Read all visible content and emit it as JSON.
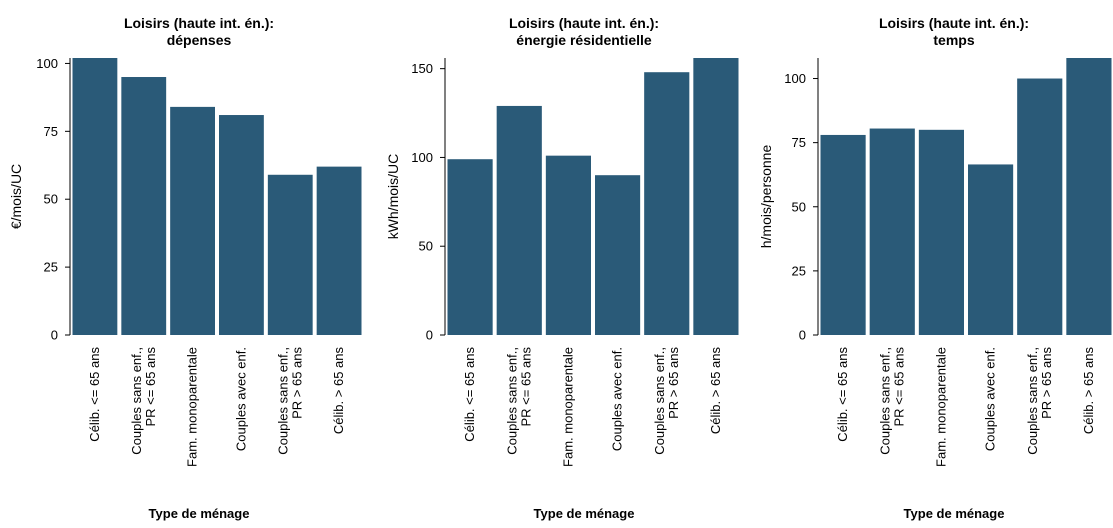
{
  "chart_data": [
    {
      "type": "bar",
      "title": [
        "Loisirs (haute int. én.):",
        "dépenses"
      ],
      "xlabel": "Type de ménage",
      "ylabel": "€/mois/UC",
      "categories": [
        [
          "Célib. <= 65 ans"
        ],
        [
          "Couples sans enf.,",
          "PR <= 65 ans"
        ],
        [
          "Fam. monoparentale"
        ],
        [
          "Couples avec enf."
        ],
        [
          "Couples sans enf.,",
          "PR > 65 ans"
        ],
        [
          "Célib. > 65 ans"
        ]
      ],
      "values": [
        102,
        95,
        84,
        81,
        59,
        62
      ],
      "ylim": [
        0,
        102
      ],
      "yticks": [
        0,
        25,
        50,
        75,
        100
      ],
      "color": "#2a5a78"
    },
    {
      "type": "bar",
      "title": [
        "Loisirs (haute int. én.):",
        "énergie résidentielle"
      ],
      "xlabel": "Type de ménage",
      "ylabel": "kWh/mois/UC",
      "categories": [
        [
          "Célib. <= 65 ans"
        ],
        [
          "Couples sans enf.,",
          "PR <= 65 ans"
        ],
        [
          "Fam. monoparentale"
        ],
        [
          "Couples avec enf."
        ],
        [
          "Couples sans enf.,",
          "PR > 65 ans"
        ],
        [
          "Célib. > 65 ans"
        ]
      ],
      "values": [
        99,
        129,
        101,
        90,
        148,
        156
      ],
      "ylim": [
        0,
        156
      ],
      "yticks": [
        0,
        50,
        100,
        150
      ],
      "color": "#2a5a78"
    },
    {
      "type": "bar",
      "title": [
        "Loisirs (haute int. én.):",
        "temps"
      ],
      "xlabel": "Type de ménage",
      "ylabel": "h/mois/personne",
      "categories": [
        [
          "Célib. <= 65 ans"
        ],
        [
          "Couples sans enf.,",
          "PR <= 65 ans"
        ],
        [
          "Fam. monoparentale"
        ],
        [
          "Couples avec enf."
        ],
        [
          "Couples sans enf.,",
          "PR > 65 ans"
        ],
        [
          "Célib. > 65 ans"
        ]
      ],
      "values": [
        78,
        80.5,
        80,
        66.5,
        100,
        108
      ],
      "ylim": [
        0,
        108
      ],
      "yticks": [
        0,
        25,
        50,
        75,
        100
      ],
      "color": "#2a5a78"
    }
  ]
}
